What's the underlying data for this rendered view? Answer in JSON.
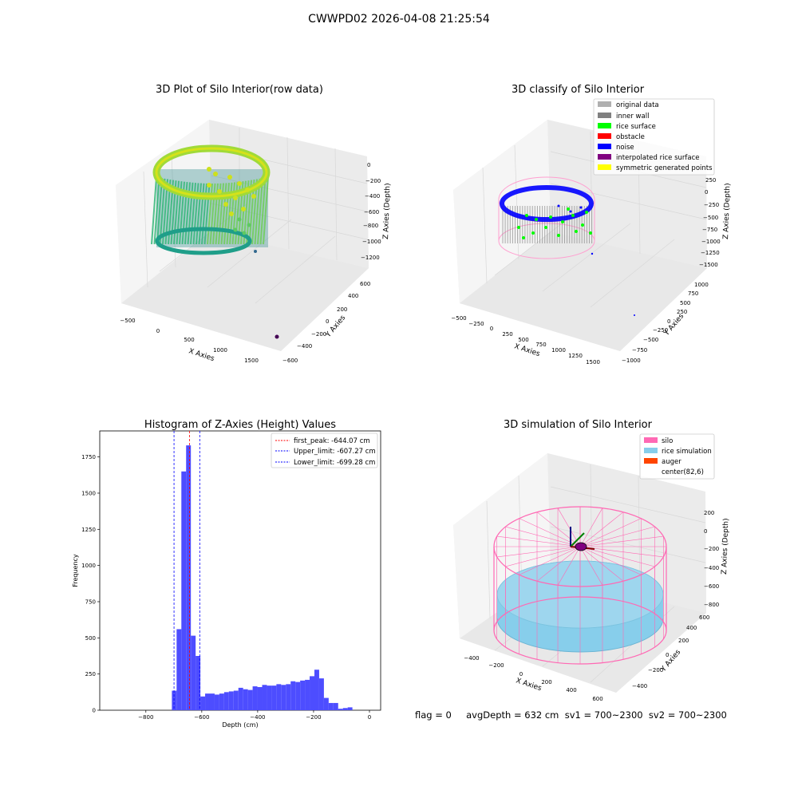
{
  "suptitle": "CWWPD02 2026-04-08 21:25:54",
  "footer_text": "flag = 0     avgDepth = 632 cm  sv1 = 700~2300  sv2 = 700~2300",
  "colors": {
    "histogram_bar": "#4d4dff",
    "first_peak_line": "#ff0000",
    "limit_line": "#0000ff",
    "original_data": "#b0b0b0",
    "inner_wall": "#808080",
    "rice_surface": "#00ff00",
    "obstacle": "#ff0000",
    "noise": "#0000ff",
    "interpolated_rice_surface": "#800080",
    "symmetric_generated_points": "#ffff00",
    "silo": "#ff69b4",
    "rice_simulation": "#87ceeb",
    "auger": "#ff4500"
  },
  "chart_data": [
    {
      "type": "scatter",
      "title": "3D Plot of Silo Interior(row data)",
      "xlabel": "X Axies",
      "ylabel": "Y Axies",
      "zlabel": "Z Axies (Depth)",
      "x_ticks": [
        "−500",
        "0",
        "500",
        "1000",
        "1500"
      ],
      "y_ticks": [
        "−600",
        "−400",
        "−200",
        "0",
        "200",
        "400",
        "600"
      ],
      "z_ticks": [
        "−1200",
        "−1000",
        "−800",
        "−600",
        "−400",
        "−200",
        "0"
      ],
      "colormap": "viridis"
    },
    {
      "type": "scatter",
      "title": "3D classify of Silo Interior",
      "xlabel": "X Axies",
      "ylabel": "Y Axies",
      "zlabel": "Z Axies (Depth)",
      "x_ticks": [
        "−500",
        "−250",
        "0",
        "250",
        "500",
        "750",
        "1000",
        "1250",
        "1500"
      ],
      "y_ticks": [
        "−1000",
        "−750",
        "−500",
        "−250",
        "0",
        "250",
        "500",
        "750",
        "1000"
      ],
      "z_ticks": [
        "−1500",
        "−1250",
        "−1000",
        "−750",
        "−500",
        "−250",
        "0",
        "250"
      ],
      "legend": [
        "original data",
        "inner wall",
        "rice surface",
        "obstacle",
        "noise",
        "interpolated rice surface",
        "symmetric generated points"
      ],
      "legend_position": "top-right"
    },
    {
      "type": "bar",
      "title": "Histogram of Z-Axies (Height) Values",
      "xlabel": "Depth (cm)",
      "ylabel": "Frequency",
      "xlim": [
        -965,
        40
      ],
      "ylim": [
        0,
        1930
      ],
      "x_ticks": [
        -800,
        -600,
        -400,
        -200,
        0
      ],
      "x_tick_labels": [
        "−800",
        "−600",
        "−400",
        "−200",
        "0"
      ],
      "y_ticks": [
        0,
        250,
        500,
        750,
        1000,
        1250,
        1500,
        1750
      ],
      "bin_width": 17,
      "bin_starts": [
        -707,
        -690,
        -673,
        -656,
        -639,
        -622,
        -605,
        -588,
        -571,
        -554,
        -537,
        -520,
        -503,
        -486,
        -469,
        -452,
        -435,
        -418,
        -401,
        -384,
        -367,
        -350,
        -333,
        -316,
        -299,
        -282,
        -265,
        -248,
        -231,
        -214,
        -197,
        -180,
        -163,
        -146,
        -129,
        -112,
        -95,
        -78,
        -61,
        -44,
        -27,
        -10
      ],
      "values": [
        135,
        560,
        1650,
        1830,
        515,
        375,
        95,
        115,
        115,
        108,
        115,
        125,
        130,
        135,
        155,
        145,
        140,
        165,
        160,
        175,
        170,
        170,
        180,
        175,
        180,
        200,
        195,
        205,
        210,
        235,
        280,
        220,
        85,
        50,
        50,
        10,
        15,
        20,
        0,
        0,
        0,
        0
      ],
      "vlines": [
        {
          "label": "first_peak: -644.07 cm",
          "x": -644.07,
          "style": "red-dashed"
        },
        {
          "label": "Upper_limit: -607.27 cm",
          "x": -607.27,
          "style": "blue-dashed"
        },
        {
          "label": "Lower_limit: -699.28 cm",
          "x": -699.28,
          "style": "blue-dashed"
        }
      ],
      "legend_position": "top-right"
    },
    {
      "type": "scatter",
      "title": "3D simulation of Silo Interior",
      "xlabel": "X Axies",
      "ylabel": "Y Axies",
      "zlabel": "Z Axies (Depth)",
      "x_ticks": [
        "−400",
        "−200",
        "0",
        "200",
        "400",
        "600"
      ],
      "y_ticks": [
        "−400",
        "−200",
        "0",
        "200",
        "400",
        "600"
      ],
      "z_ticks": [
        "−800",
        "−600",
        "−400",
        "−200",
        "0",
        "200"
      ],
      "legend": [
        "silo",
        "rice simulation",
        "auger",
        "center(82,6)"
      ],
      "legend_position": "top-right"
    }
  ]
}
